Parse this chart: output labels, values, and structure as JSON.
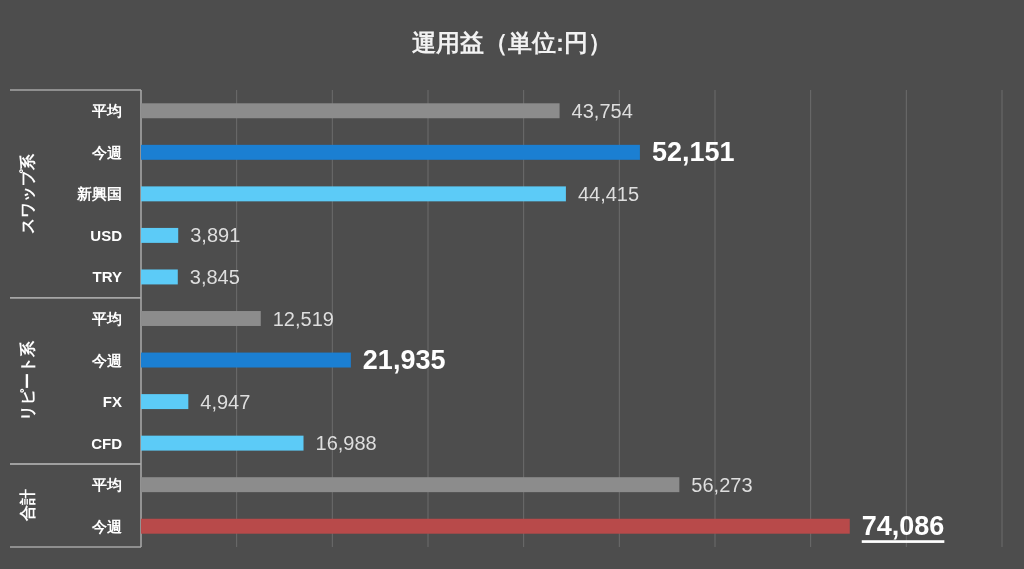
{
  "chart_data": {
    "type": "bar",
    "orientation": "horizontal",
    "title": "運用益（単位:円）",
    "categories": [
      "平均",
      "今週",
      "新興国",
      "USD",
      "TRY",
      "平均",
      "今週",
      "FX",
      "CFD",
      "平均",
      "今週"
    ],
    "series": [
      {
        "values": [
          43754,
          52151,
          44415,
          3891,
          3845,
          null,
          null,
          null,
          null,
          null,
          null
        ],
        "colors": [
          "#8c8c8c",
          "#1b7fd2",
          "#5ccbf7",
          "#5ccbf7",
          "#5ccbf7",
          null,
          null,
          null,
          null,
          null,
          null
        ],
        "value_labels": [
          "43,754",
          "52,151",
          "44,415",
          "3,891",
          "3,845",
          null,
          null,
          null,
          null,
          null,
          null
        ]
      },
      {
        "values": [
          null,
          null,
          null,
          null,
          null,
          12519,
          21935,
          4947,
          16988,
          null,
          null
        ],
        "colors": [
          null,
          null,
          null,
          null,
          null,
          "#8c8c8c",
          "#1b7fd2",
          "#5ccbf7",
          "#5ccbf7",
          null,
          null
        ],
        "value_labels": [
          null,
          null,
          null,
          null,
          null,
          "12,519",
          "21,935",
          "4,947",
          "16,988",
          null,
          null
        ]
      },
      {
        "values": [
          null,
          null,
          null,
          null,
          null,
          null,
          null,
          null,
          null,
          56273,
          74086
        ],
        "colors": [
          null,
          null,
          null,
          null,
          null,
          null,
          null,
          null,
          null,
          "#8c8c8c",
          "#b84a4a"
        ],
        "value_labels": [
          null,
          null,
          null,
          null,
          null,
          null,
          null,
          null,
          null,
          "56,273",
          "74,086"
        ]
      }
    ],
    "annotations": [
      "スワップ系",
      "リピート系",
      "合計"
    ],
    "xlim": [
      0,
      90000
    ],
    "xticks": [
      {
        "value": 0,
        "label": null
      },
      {
        "value": 10000,
        "label": null
      },
      {
        "value": 20000,
        "label": null
      },
      {
        "value": 30000,
        "label": null
      },
      {
        "value": 40000,
        "label": null
      },
      {
        "value": 50000,
        "label": null
      },
      {
        "value": 60000,
        "label": null
      },
      {
        "value": 70000,
        "label": null
      },
      {
        "value": 80000,
        "label": null
      },
      {
        "value": 90000,
        "label": null
      }
    ],
    "grid": "x",
    "tick_labels": "y"
  }
}
